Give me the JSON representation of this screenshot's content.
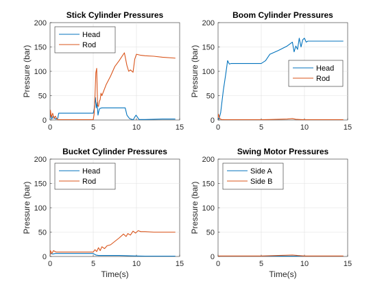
{
  "colors": {
    "series1": "#0072BD",
    "series2": "#D95319"
  },
  "chart_data": [
    {
      "type": "line",
      "title": "Stick Cylinder Pressures",
      "xlabel": "",
      "ylabel": "Pressure (bar)",
      "xlim": [
        0,
        15
      ],
      "ylim": [
        0,
        200
      ],
      "xticks": [
        0,
        5,
        10,
        15
      ],
      "yticks": [
        0,
        50,
        100,
        150,
        200
      ],
      "grid": true,
      "legend_position": "top-left",
      "series": [
        {
          "name": "Head",
          "color": "#0072BD",
          "x": [
            0,
            0.05,
            0.2,
            0.35,
            0.5,
            0.7,
            0.9,
            1.0,
            1.5,
            2,
            3,
            4,
            5,
            5.1,
            5.25,
            5.35,
            5.45,
            5.55,
            5.6,
            5.7,
            5.8,
            6,
            7,
            8,
            8.7,
            8.9,
            9.2,
            9.5,
            9.65,
            9.8,
            9.95,
            10.1,
            10.3,
            11,
            12,
            13,
            14.5
          ],
          "y": [
            3,
            12,
            2,
            8,
            4,
            2,
            4,
            14,
            14,
            14,
            14,
            14,
            14,
            22,
            46,
            25,
            36,
            10,
            15,
            22,
            24,
            25,
            25,
            25,
            25,
            10,
            3,
            1,
            1,
            6,
            10,
            6,
            1,
            1,
            1.5,
            2,
            2
          ]
        },
        {
          "name": "Rod",
          "color": "#D95319",
          "x": [
            0,
            0.05,
            0.15,
            0.3,
            0.45,
            0.6,
            0.8,
            1.0,
            2,
            3,
            4,
            5,
            5.1,
            5.2,
            5.3,
            5.4,
            5.5,
            5.6,
            5.7,
            5.8,
            5.9,
            6.0,
            6.5,
            7,
            7.5,
            8,
            8.3,
            8.6,
            8.9,
            9.1,
            9.3,
            9.6,
            9.8,
            10,
            10.5,
            11,
            12,
            13,
            14.5
          ],
          "y": [
            8,
            20,
            5,
            14,
            3,
            8,
            2,
            0.5,
            0.5,
            0.5,
            0.5,
            0.5,
            12,
            48,
            97,
            106,
            30,
            28,
            38,
            42,
            55,
            50,
            73,
            90,
            110,
            122,
            130,
            138,
            112,
            100,
            103,
            98,
            125,
            135,
            133,
            132,
            131,
            129,
            127
          ]
        }
      ]
    },
    {
      "type": "line",
      "title": "Boom Cylinder Pressures",
      "xlabel": "",
      "ylabel": "Pressure (bar)",
      "xlim": [
        0,
        15
      ],
      "ylim": [
        0,
        200
      ],
      "xticks": [
        0,
        5,
        10,
        15
      ],
      "yticks": [
        0,
        50,
        100,
        150,
        200
      ],
      "grid": true,
      "legend_position": "middle-right",
      "series": [
        {
          "name": "Head",
          "color": "#0072BD",
          "x": [
            0,
            0.1,
            0.3,
            0.6,
            0.9,
            1.1,
            1.3,
            1.5,
            2,
            3,
            4,
            5,
            5.5,
            6,
            7,
            8,
            8.6,
            8.8,
            9.0,
            9.2,
            9.4,
            9.6,
            9.8,
            10,
            10.2,
            10.4,
            11,
            12,
            14.5
          ],
          "y": [
            5,
            2,
            15,
            60,
            95,
            122,
            115,
            116,
            116,
            116,
            116,
            116,
            122,
            135,
            143,
            152,
            160,
            140,
            152,
            145,
            168,
            150,
            165,
            168,
            160,
            162,
            162,
            162,
            162
          ]
        },
        {
          "name": "Rod",
          "color": "#D95319",
          "x": [
            0,
            0.05,
            0.2,
            0.4,
            0.8,
            2,
            4,
            5,
            6,
            7,
            8,
            8.6,
            9,
            9.5,
            10,
            11,
            12,
            14.5
          ],
          "y": [
            4,
            12,
            3,
            1,
            0.5,
            0.5,
            0.5,
            0.5,
            1,
            1.5,
            2,
            3,
            1.5,
            1,
            0.5,
            0.5,
            0.5,
            0.5
          ]
        }
      ]
    },
    {
      "type": "line",
      "title": "Bucket Cylinder Pressures",
      "xlabel": "Time(s)",
      "ylabel": "Pressure (bar)",
      "xlim": [
        0,
        15
      ],
      "ylim": [
        0,
        200
      ],
      "xticks": [
        0,
        5,
        10,
        15
      ],
      "yticks": [
        0,
        50,
        100,
        150,
        200
      ],
      "grid": true,
      "legend_position": "top-left",
      "series": [
        {
          "name": "Head",
          "color": "#0072BD",
          "x": [
            0,
            0.1,
            0.3,
            0.6,
            1,
            2,
            3,
            4,
            5,
            5.3,
            5.6,
            6,
            7,
            8,
            9,
            10,
            11,
            12,
            14.5
          ],
          "y": [
            4,
            6,
            5,
            6,
            6,
            6,
            6,
            6,
            6,
            3,
            2,
            2,
            2,
            2,
            1.5,
            1,
            0.5,
            0.5,
            0.5
          ]
        },
        {
          "name": "Rod",
          "color": "#D95319",
          "x": [
            0,
            0.05,
            0.2,
            0.4,
            0.7,
            1,
            2,
            3,
            4,
            5,
            5.2,
            5.4,
            5.6,
            5.8,
            6,
            6.3,
            6.6,
            7,
            7.5,
            8,
            8.5,
            8.8,
            9.0,
            9.3,
            9.6,
            9.9,
            10.2,
            10.5,
            11,
            12,
            13,
            14.5
          ],
          "y": [
            2,
            12,
            6,
            12,
            9,
            9,
            9,
            9,
            9,
            9,
            14,
            10,
            18,
            12,
            20,
            16,
            22,
            24,
            31,
            38,
            46,
            41,
            47,
            44,
            52,
            48,
            53,
            51,
            51,
            50,
            50,
            50
          ]
        }
      ]
    },
    {
      "type": "line",
      "title": "Swing Motor Pressures",
      "xlabel": "Time(s)",
      "ylabel": "Pressure (bar)",
      "xlim": [
        0,
        15
      ],
      "ylim": [
        0,
        200
      ],
      "xticks": [
        0,
        5,
        10,
        15
      ],
      "yticks": [
        0,
        50,
        100,
        150,
        200
      ],
      "grid": true,
      "legend_position": "top-left",
      "series": [
        {
          "name": "Side A",
          "color": "#0072BD",
          "x": [
            0,
            1,
            3,
            5,
            7,
            9,
            11,
            14.5
          ],
          "y": [
            0.5,
            0.5,
            0.5,
            0.5,
            0.5,
            0.5,
            0.5,
            0.5
          ]
        },
        {
          "name": "Side B",
          "color": "#D95319",
          "x": [
            0,
            1,
            3,
            5,
            6,
            7,
            8,
            8.6,
            9.2,
            10,
            12,
            14.5
          ],
          "y": [
            1,
            1,
            1,
            1,
            1.5,
            2,
            2.5,
            3,
            2,
            1,
            1,
            1
          ]
        }
      ]
    }
  ]
}
